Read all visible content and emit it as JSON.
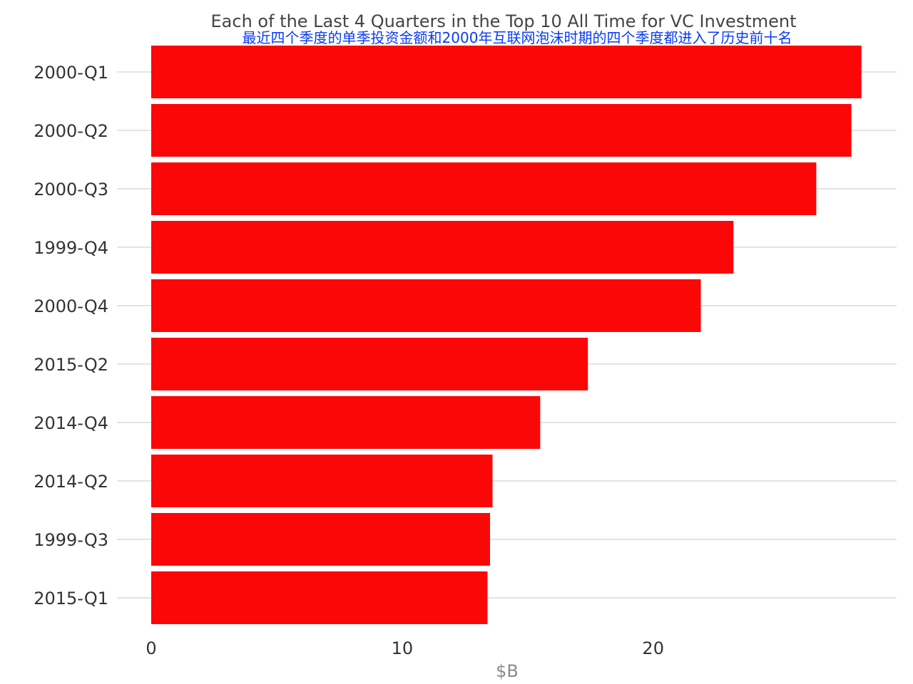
{
  "chart_data": {
    "type": "bar",
    "orientation": "horizontal",
    "title": "Each of the Last 4 Quarters in the Top 10 All Time for VC Investment",
    "subtitle": "最近四个季度的单季投资金额和2000年互联网泡沫时期的四个季度都进入了历史前十名",
    "categories": [
      "2000-Q1",
      "2000-Q2",
      "2000-Q3",
      "1999-Q4",
      "2000-Q4",
      "2015-Q2",
      "2014-Q4",
      "2014-Q2",
      "1999-Q3",
      "2015-Q1"
    ],
    "values": [
      28.3,
      27.9,
      26.5,
      23.2,
      21.9,
      17.4,
      15.5,
      13.6,
      13.5,
      13.4
    ],
    "xlabel": "$B",
    "ylabel": "",
    "xlim": [
      0,
      29.7
    ],
    "xticks": [
      0,
      10,
      20
    ],
    "grid": true,
    "legend": "none",
    "colors": {
      "bar": "#fc0707",
      "title": "#444444",
      "subtitle": "#0a3cf5",
      "grid": "#c8c8c8",
      "axis_title": "#8a8a8a"
    }
  }
}
